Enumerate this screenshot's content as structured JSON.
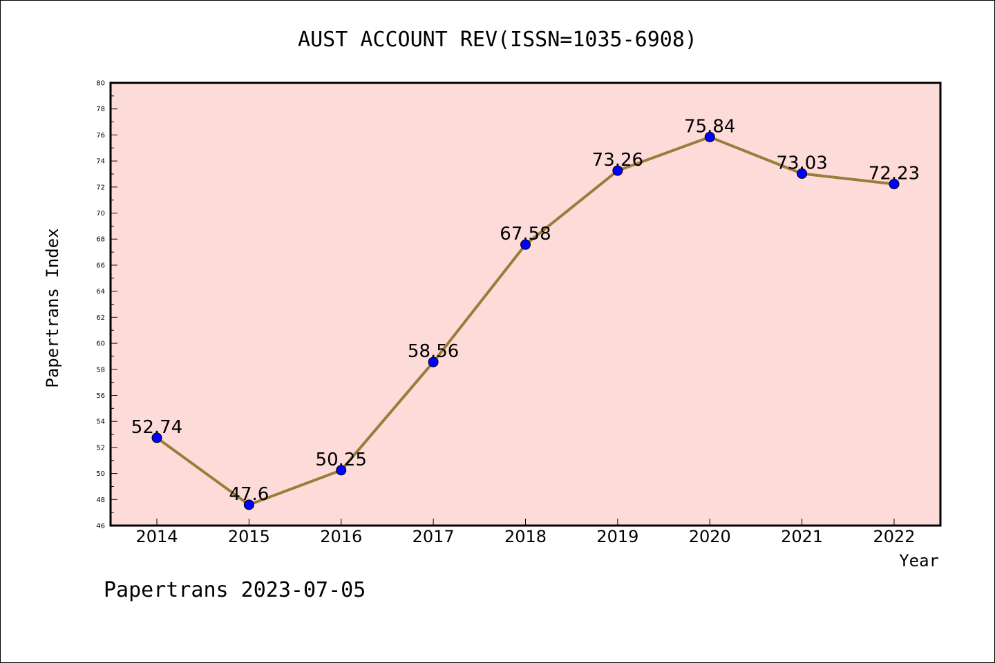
{
  "chart_data": {
    "type": "line",
    "title": "AUST ACCOUNT REV(ISSN=1035-6908)",
    "xlabel": "Year",
    "ylabel": "Papertrans Index",
    "categories": [
      "2014",
      "2015",
      "2016",
      "2017",
      "2018",
      "2019",
      "2020",
      "2021",
      "2022"
    ],
    "values": [
      52.74,
      47.6,
      50.25,
      58.56,
      67.58,
      73.26,
      75.84,
      73.03,
      72.23
    ],
    "data_labels": [
      "52.74",
      "47.6",
      "50.25",
      "58.56",
      "67.58",
      "73.26",
      "75.84",
      "73.03",
      "72.23"
    ],
    "ylim": [
      46,
      80
    ],
    "yticks": [
      "46",
      "48",
      "50",
      "52",
      "54",
      "56",
      "58",
      "60",
      "62",
      "64",
      "66",
      "68",
      "70",
      "72",
      "74",
      "76",
      "78",
      "80"
    ],
    "grid": false,
    "colors": {
      "plot_background": "#fddbd9",
      "line": "#9a7d3a",
      "marker": "#0000ff"
    }
  },
  "footer": "Papertrans 2023-07-05"
}
